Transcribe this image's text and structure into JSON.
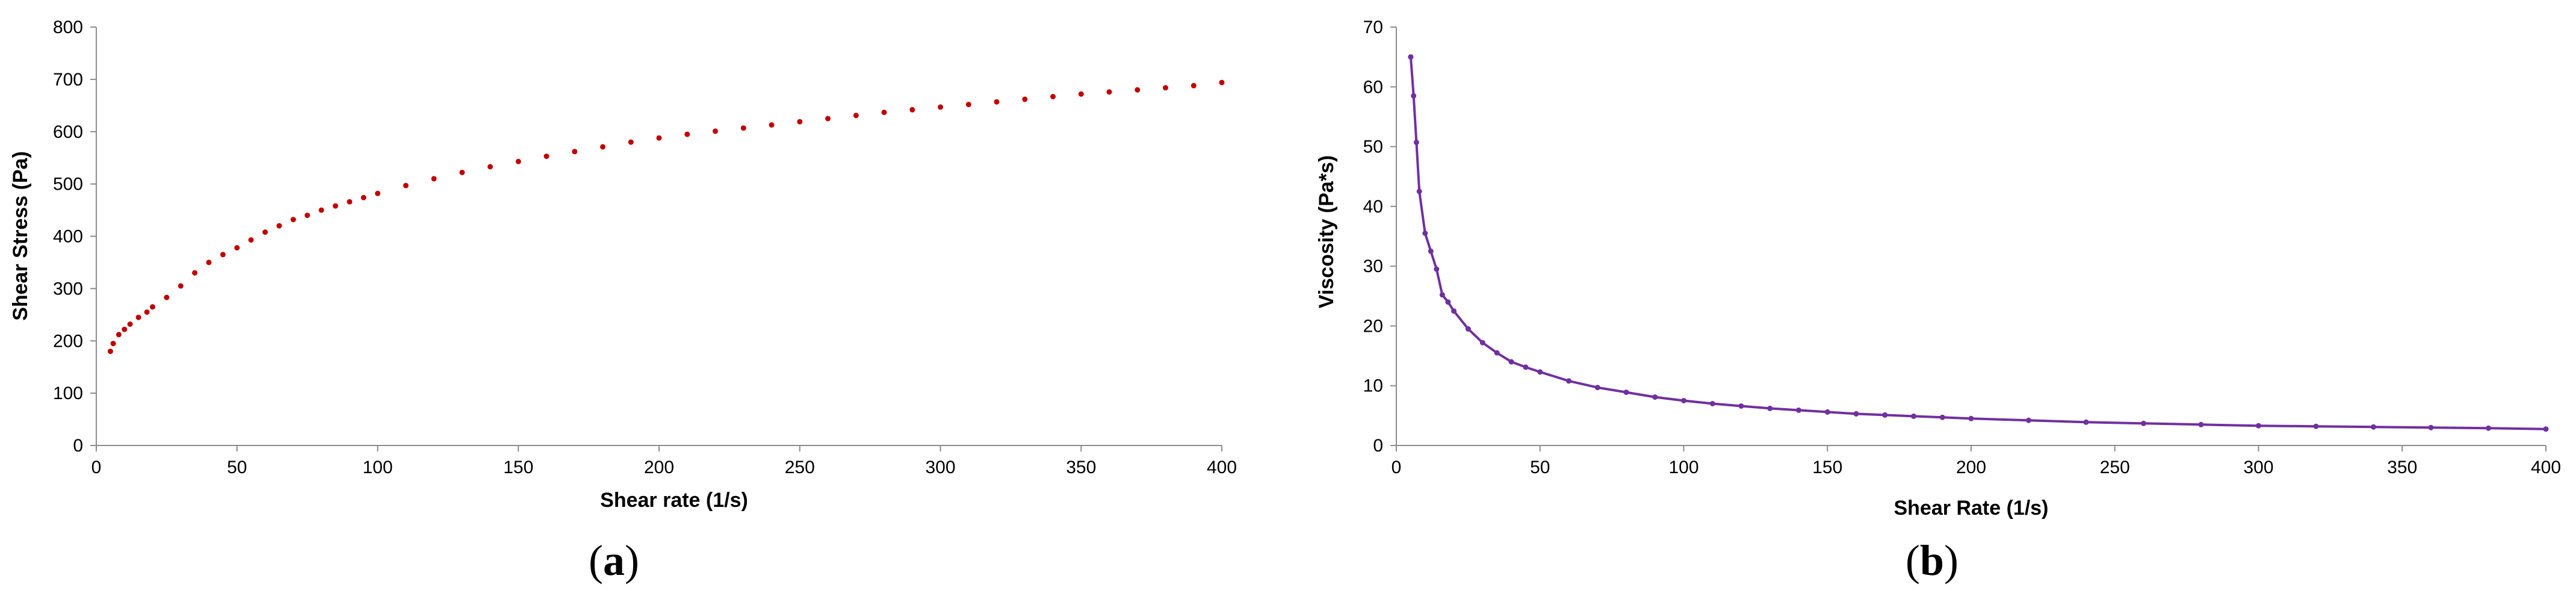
{
  "chart_data": [
    {
      "panel_label": {
        "open": "(",
        "letter": "a",
        "close": ")"
      },
      "type": "scatter",
      "title": "",
      "xlabel": "Shear rate (1/s)",
      "ylabel": "Shear Stress (Pa)",
      "xlim": [
        0,
        400
      ],
      "ylim": [
        0,
        800
      ],
      "xticks": [
        0,
        50,
        100,
        150,
        200,
        250,
        300,
        350,
        400
      ],
      "yticks": [
        0,
        100,
        200,
        300,
        400,
        500,
        600,
        700,
        800
      ],
      "grid": false,
      "legend": "none",
      "color": "#c00000",
      "series": [
        {
          "x": [
            5,
            6,
            8,
            10,
            12,
            15,
            18,
            20,
            25,
            30,
            35,
            40,
            45,
            50,
            55,
            60,
            65,
            70,
            75,
            80,
            85,
            90,
            95,
            100,
            110,
            120,
            130,
            140,
            150,
            160,
            170,
            180,
            190,
            200,
            210,
            220,
            230,
            240,
            250,
            260,
            270,
            280,
            290,
            300,
            310,
            320,
            330,
            340,
            350,
            360,
            370,
            380,
            390,
            400
          ],
          "y": [
            180,
            195,
            212,
            222,
            232,
            245,
            255,
            265,
            283,
            305,
            330,
            350,
            365,
            378,
            393,
            408,
            420,
            432,
            440,
            450,
            458,
            466,
            474,
            482,
            497,
            510,
            522,
            533,
            543,
            553,
            562,
            571,
            580,
            588,
            595,
            601,
            607,
            613,
            619,
            625,
            631,
            637,
            642,
            647,
            652,
            657,
            662,
            667,
            672,
            676,
            680,
            684,
            688,
            694
          ]
        }
      ]
    },
    {
      "panel_label": {
        "open": "(",
        "letter": "b",
        "close": ")"
      },
      "type": "line",
      "title": "",
      "xlabel": "Shear Rate (1/s)",
      "ylabel": "Viscosity (Pa*s)",
      "xlim": [
        0,
        400
      ],
      "ylim": [
        0,
        70
      ],
      "xticks": [
        0,
        50,
        100,
        150,
        200,
        250,
        300,
        350,
        400
      ],
      "yticks": [
        0,
        10,
        20,
        30,
        40,
        50,
        60,
        70
      ],
      "grid": false,
      "legend": "none",
      "color": "#7030a0",
      "series": [
        {
          "x": [
            5,
            6,
            7,
            8,
            10,
            12,
            14,
            16,
            18,
            20,
            25,
            30,
            35,
            40,
            45,
            50,
            60,
            70,
            80,
            90,
            100,
            110,
            120,
            130,
            140,
            150,
            160,
            170,
            180,
            190,
            200,
            220,
            240,
            260,
            280,
            300,
            320,
            340,
            360,
            380,
            400
          ],
          "y": [
            65,
            58.5,
            50.7,
            42.5,
            35.5,
            32.5,
            29.5,
            25.2,
            24,
            22.5,
            19.5,
            17.2,
            15.5,
            14,
            13.1,
            12.3,
            10.8,
            9.7,
            8.9,
            8.1,
            7.5,
            7.0,
            6.6,
            6.2,
            5.9,
            5.6,
            5.3,
            5.1,
            4.9,
            4.7,
            4.5,
            4.2,
            3.9,
            3.7,
            3.5,
            3.3,
            3.2,
            3.1,
            3.0,
            2.9,
            2.75
          ]
        }
      ]
    }
  ]
}
